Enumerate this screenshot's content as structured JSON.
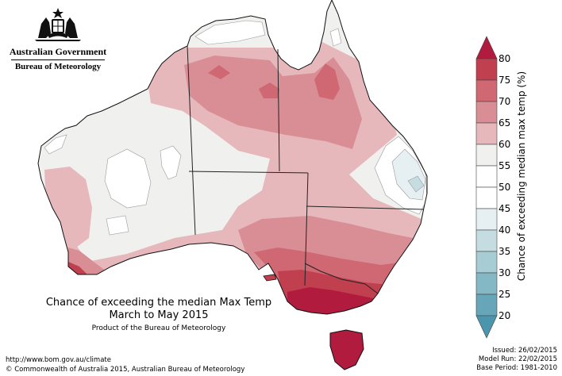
{
  "logo": {
    "government": "Australian Government",
    "bureau": "Bureau of Meteorology",
    "icon": "coat-of-arms-icon"
  },
  "title": {
    "line1": "Chance of exceeding the median Max Temp",
    "line2": "March to May 2015",
    "line3": "Product of the Bureau of Meteorology"
  },
  "footer": {
    "url": "http://www.bom.gov.au/climate",
    "copyright": "© Commonwealth of Australia 2015, Australian Bureau of Meteorology",
    "issued": "Issued: 26/02/2015",
    "model_run": "Model Run: 22/02/2015",
    "base_period": "Base Period: 1981-2010"
  },
  "legend": {
    "title": "Chance of exceeding median max temp (%)",
    "ticks": [
      "80",
      "75",
      "70",
      "65",
      "60",
      "55",
      "50",
      "45",
      "40",
      "35",
      "30",
      "25",
      "20"
    ],
    "colors": {
      "above_80": "#b01b3e",
      "75_80": "#c1404f",
      "70_75": "#cf6872",
      "65_70": "#d98e95",
      "60_65": "#e6b8bc",
      "55_60": "#f0f0ee",
      "50_55": "#ffffff",
      "45_50": "#ffffff",
      "40_45": "#e6eff1",
      "35_40": "#c5dde0",
      "30_35": "#a8ccd3",
      "25_30": "#85b8c5",
      "20_25": "#66a6b8",
      "below_20": "#4b95ad"
    }
  }
}
